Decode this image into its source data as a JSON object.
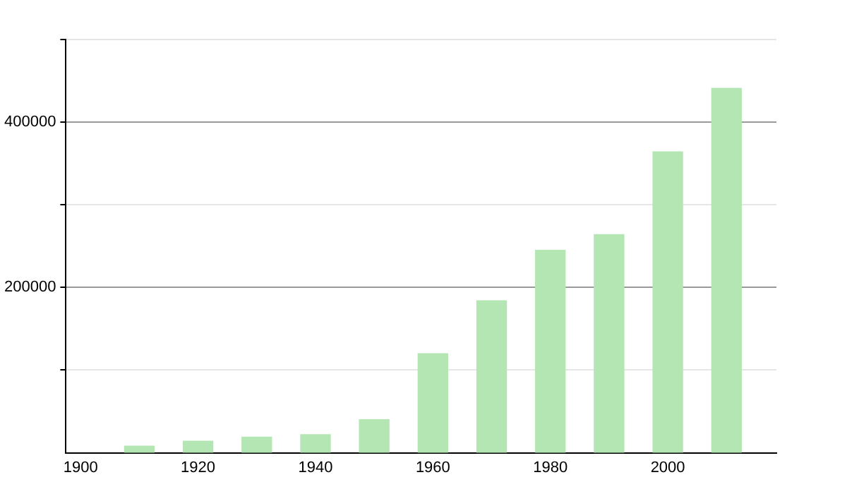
{
  "chart_data": {
    "type": "bar",
    "x": [
      1910,
      1920,
      1930,
      1940,
      1950,
      1960,
      1970,
      1980,
      1990,
      2000,
      2010
    ],
    "values": [
      8000,
      14000,
      19000,
      22000,
      40000,
      120000,
      184000,
      245000,
      264000,
      364000,
      441000
    ],
    "color": "#b3e6b3",
    "xlim": [
      1897.5,
      2018.5
    ],
    "xticks": [
      1900,
      1920,
      1940,
      1960,
      1980,
      2000
    ],
    "ylim": [
      0,
      500000
    ],
    "yticks": [
      {
        "value": 100000,
        "label": null
      },
      200000,
      {
        "value": 300000,
        "label": null
      },
      400000,
      {
        "value": 500000,
        "label": null
      }
    ],
    "grid": "y",
    "legend": false
  }
}
